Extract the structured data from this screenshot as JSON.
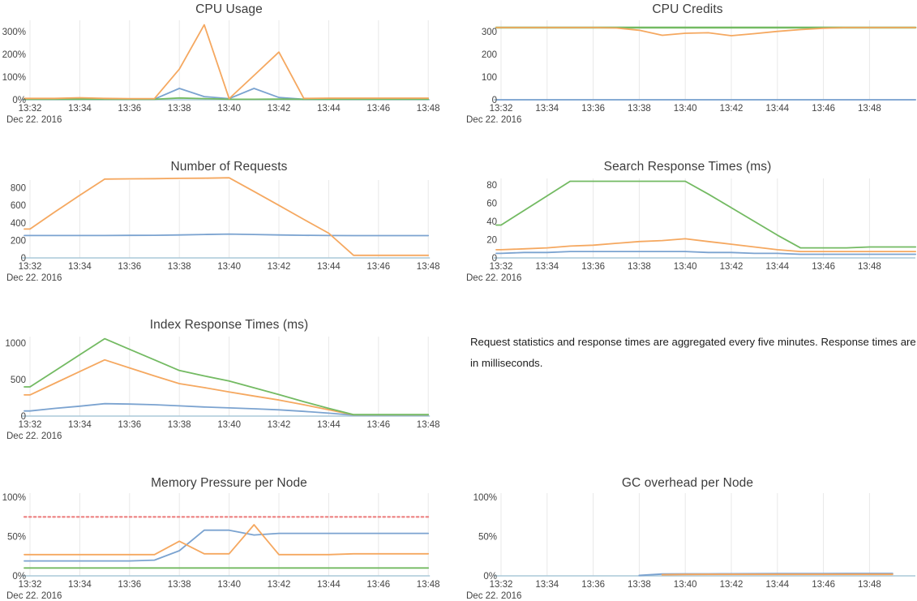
{
  "page": {
    "background": "#ffffff"
  },
  "x_axis": {
    "tick_labels": [
      "13:32",
      "13:34",
      "13:36",
      "13:38",
      "13:40",
      "13:42",
      "13:44",
      "13:46",
      "13:48"
    ],
    "date_label": "Dec 22. 2016"
  },
  "note": {
    "text": "Request statistics and response times are aggregated every five minutes. Response times are in milliseconds."
  },
  "colors": {
    "blue": "#7ba3d0",
    "orange": "#f5a860",
    "green": "#73ba62",
    "red": "#ec8080",
    "axis": "#aac8d9",
    "grid": "#e8e8e8",
    "title": "#3d3d3d",
    "tick": "#444444"
  },
  "chart_data": [
    {
      "type": "line",
      "title": "CPU Usage",
      "x": [
        "13:32",
        "13:33",
        "13:34",
        "13:35",
        "13:36",
        "13:37",
        "13:38",
        "13:39",
        "13:40",
        "13:41",
        "13:42",
        "13:43",
        "13:44",
        "13:45",
        "13:46",
        "13:47",
        "13:48"
      ],
      "ylim": [
        0,
        355
      ],
      "y_ticks": {
        "values": [
          0,
          100,
          200,
          300
        ],
        "labels": [
          "0%",
          "100%",
          "200%",
          "300%"
        ]
      },
      "grid": "vertical",
      "legend": "none",
      "series": [
        {
          "name": "series-blue",
          "color": "blue",
          "values": [
            2,
            2,
            3,
            2,
            2,
            3,
            50,
            14,
            5,
            50,
            10,
            2,
            2,
            2,
            2,
            2,
            2
          ]
        },
        {
          "name": "series-green",
          "color": "green",
          "values": [
            2,
            2,
            2,
            2,
            2,
            2,
            8,
            5,
            2,
            2,
            3,
            2,
            2,
            2,
            2,
            2,
            2
          ]
        },
        {
          "name": "series-orange",
          "color": "orange",
          "values": [
            6,
            6,
            9,
            6,
            5,
            5,
            135,
            330,
            5,
            107,
            210,
            6,
            7,
            7,
            7,
            7,
            7
          ]
        }
      ]
    },
    {
      "type": "line",
      "title": "CPU Credits",
      "x": [
        "13:32",
        "13:33",
        "13:34",
        "13:35",
        "13:36",
        "13:37",
        "13:38",
        "13:39",
        "13:40",
        "13:41",
        "13:42",
        "13:43",
        "13:44",
        "13:45",
        "13:46",
        "13:47",
        "13:48",
        "13:49",
        "13:50"
      ],
      "ylim": [
        0,
        345
      ],
      "y_ticks": {
        "values": [
          0,
          100,
          200,
          300
        ],
        "labels": [
          "0",
          "100",
          "200",
          "300"
        ]
      },
      "grid": "vertical",
      "legend": "none",
      "series": [
        {
          "name": "series-green",
          "color": "green",
          "width": 2.4,
          "values": [
            318,
            318,
            318,
            318,
            318,
            318,
            318,
            318,
            318,
            318,
            318,
            318,
            318,
            318,
            318,
            318,
            318,
            318,
            318
          ]
        },
        {
          "name": "series-orange",
          "color": "orange",
          "values": [
            318,
            318,
            318,
            318,
            318,
            316,
            306,
            284,
            293,
            295,
            282,
            291,
            301,
            309,
            315,
            318,
            318,
            318,
            318
          ]
        },
        {
          "name": "series-blue",
          "color": "blue",
          "values": [
            0,
            0,
            0,
            0,
            0,
            0,
            0,
            0,
            0,
            0,
            0,
            0,
            0,
            0,
            0,
            0,
            0,
            0,
            0
          ]
        }
      ]
    },
    {
      "type": "line",
      "title": "Number of Requests",
      "x": [
        "13:32",
        "13:33",
        "13:34",
        "13:35",
        "13:36",
        "13:37",
        "13:38",
        "13:39",
        "13:40",
        "13:41",
        "13:42",
        "13:43",
        "13:44",
        "13:45",
        "13:46",
        "13:47",
        "13:48"
      ],
      "ylim": [
        0,
        980
      ],
      "y_ticks": {
        "values": [
          0,
          200,
          400,
          600,
          800
        ],
        "labels": [
          "0",
          "200",
          "400",
          "600",
          "800"
        ]
      },
      "grid": "vertical",
      "legend": "none",
      "series": [
        {
          "name": "series-blue",
          "color": "blue",
          "values": [
            256,
            256,
            256,
            256,
            257,
            258,
            262,
            268,
            272,
            268,
            262,
            258,
            256,
            255,
            255,
            255,
            255
          ]
        },
        {
          "name": "series-orange",
          "color": "orange",
          "values": [
            330,
            525,
            715,
            900,
            903,
            905,
            908,
            910,
            915,
            758,
            600,
            440,
            282,
            30,
            30,
            30,
            30
          ]
        }
      ]
    },
    {
      "type": "line",
      "title": "Search Response Times (ms)",
      "x": [
        "13:32",
        "13:33",
        "13:34",
        "13:35",
        "13:36",
        "13:37",
        "13:38",
        "13:39",
        "13:40",
        "13:41",
        "13:42",
        "13:43",
        "13:44",
        "13:45",
        "13:46",
        "13:47",
        "13:48",
        "13:49",
        "13:50"
      ],
      "ylim": [
        0,
        93
      ],
      "y_ticks": {
        "values": [
          0,
          20,
          40,
          60,
          80
        ],
        "labels": [
          "0",
          "20",
          "40",
          "60",
          "80"
        ]
      },
      "grid": "vertical",
      "legend": "none",
      "series": [
        {
          "name": "series-blue",
          "color": "blue",
          "values": [
            5,
            6,
            6,
            7,
            7,
            7,
            7,
            7,
            7,
            6,
            6,
            5,
            5,
            4,
            4,
            4,
            4,
            4,
            4
          ]
        },
        {
          "name": "series-orange",
          "color": "orange",
          "values": [
            9,
            10,
            11,
            13,
            14,
            16,
            18,
            19,
            21,
            18,
            15,
            12,
            9,
            7,
            7,
            7,
            7,
            7,
            7
          ]
        },
        {
          "name": "series-green",
          "color": "green",
          "values": [
            36,
            52,
            68,
            84,
            84,
            84,
            84,
            84,
            84,
            70,
            55,
            40,
            25,
            11,
            11,
            11,
            12,
            12,
            12
          ]
        }
      ]
    },
    {
      "type": "line",
      "title": "Index Response Times (ms)",
      "x": [
        "13:32",
        "13:33",
        "13:34",
        "13:35",
        "13:36",
        "13:37",
        "13:38",
        "13:39",
        "13:40",
        "13:41",
        "13:42",
        "13:43",
        "13:44",
        "13:45",
        "13:46",
        "13:47",
        "13:48"
      ],
      "ylim": [
        0,
        1160
      ],
      "y_ticks": {
        "values": [
          0,
          500,
          1000
        ],
        "labels": [
          "0",
          "500",
          "1000"
        ]
      },
      "grid": "vertical",
      "legend": "none",
      "series": [
        {
          "name": "series-blue",
          "color": "blue",
          "values": [
            70,
            105,
            135,
            170,
            165,
            155,
            140,
            125,
            112,
            100,
            85,
            65,
            40,
            12,
            12,
            12,
            12
          ]
        },
        {
          "name": "series-orange",
          "color": "orange",
          "values": [
            290,
            450,
            610,
            770,
            660,
            550,
            445,
            390,
            330,
            275,
            220,
            155,
            85,
            18,
            18,
            18,
            18
          ]
        },
        {
          "name": "series-green",
          "color": "green",
          "values": [
            400,
            620,
            840,
            1060,
            915,
            770,
            625,
            550,
            480,
            388,
            295,
            198,
            105,
            20,
            20,
            20,
            20
          ]
        }
      ]
    },
    {
      "type": "line",
      "title": "Memory Pressure per Node",
      "x": [
        "13:32",
        "13:33",
        "13:34",
        "13:35",
        "13:36",
        "13:37",
        "13:38",
        "13:39",
        "13:40",
        "13:41",
        "13:42",
        "13:43",
        "13:44",
        "13:45",
        "13:46",
        "13:47",
        "13:48"
      ],
      "ylim": [
        0,
        103
      ],
      "y_ticks": {
        "values": [
          0,
          50,
          100
        ],
        "labels": [
          "0%",
          "50%",
          "100%"
        ]
      },
      "grid": "vertical",
      "legend": "none",
      "series": [
        {
          "name": "series-green",
          "color": "green",
          "values": [
            10,
            10,
            10,
            10,
            10,
            10,
            10,
            10,
            10,
            10,
            10,
            10,
            10,
            10,
            10,
            10,
            10
          ]
        },
        {
          "name": "series-blue",
          "color": "blue",
          "values": [
            19,
            19,
            19,
            19,
            19,
            20,
            32,
            58,
            58,
            52,
            54,
            54,
            54,
            54,
            54,
            54,
            54
          ]
        },
        {
          "name": "series-orange",
          "color": "orange",
          "values": [
            27,
            27,
            27,
            27,
            27,
            27,
            44,
            28,
            28,
            65,
            27,
            27,
            27,
            28,
            28,
            28,
            28
          ]
        },
        {
          "name": "threshold-dotted",
          "color": "red",
          "style": "dashed",
          "width": 2.2,
          "values": [
            75,
            75,
            75,
            75,
            75,
            75,
            75,
            75,
            75,
            75,
            75,
            75,
            75,
            75,
            75,
            75,
            75
          ]
        }
      ]
    },
    {
      "type": "line",
      "title": "GC overhead per Node",
      "x": [
        "13:32",
        "13:33",
        "13:34",
        "13:35",
        "13:36",
        "13:37",
        "13:38",
        "13:39",
        "13:40",
        "13:41",
        "13:42",
        "13:43",
        "13:44",
        "13:45",
        "13:46",
        "13:47",
        "13:48",
        "13:49",
        "13:50"
      ],
      "ylim": [
        0,
        103
      ],
      "y_ticks": {
        "values": [
          0,
          50,
          100
        ],
        "labels": [
          "0%",
          "50%",
          "100%"
        ]
      },
      "grid": "vertical",
      "legend": "none",
      "series": [
        {
          "name": "series-blue",
          "color": "blue",
          "width": 2,
          "values": [
            null,
            null,
            null,
            null,
            null,
            null,
            0.5,
            2.3,
            2.5,
            2.5,
            2.6,
            2.7,
            2.8,
            2.8,
            2.9,
            3,
            3,
            3,
            null
          ]
        },
        {
          "name": "series-orange",
          "color": "orange",
          "width": 2,
          "values": [
            null,
            null,
            null,
            null,
            null,
            null,
            null,
            1.4,
            1.8,
            2,
            2,
            2,
            2,
            2,
            2,
            2,
            2,
            2,
            null
          ]
        }
      ]
    }
  ]
}
